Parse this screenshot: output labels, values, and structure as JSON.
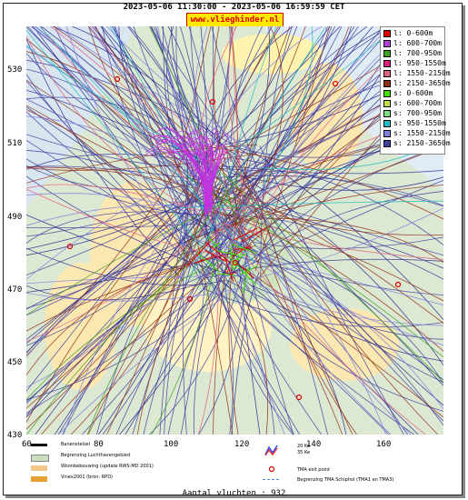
{
  "header": {
    "title": "2023-05-06 11:30:00 - 2023-05-06 16:59:59 CET",
    "site": "www.vlieghinder.nl"
  },
  "axes": {
    "y_ticks": [
      "530",
      "510",
      "490",
      "470",
      "450",
      "430"
    ],
    "x_ticks": [
      "60",
      "80",
      "100",
      "120",
      "140",
      "160"
    ]
  },
  "legend": [
    {
      "label": "l: 0-600m",
      "color": "#e00000"
    },
    {
      "label": "l: 600-700m",
      "color": "#b040e0"
    },
    {
      "label": "l: 700-950m",
      "color": "#40a020"
    },
    {
      "label": "l: 950-1550m",
      "color": "#e02080"
    },
    {
      "label": "l: 1550-2150m",
      "color": "#e06080"
    },
    {
      "label": "l: 2150-3650m",
      "color": "#903018"
    },
    {
      "label": "s: 0-600m",
      "color": "#40e000"
    },
    {
      "label": "s: 600-700m",
      "color": "#c0e040"
    },
    {
      "label": "s: 700-950m",
      "color": "#80e080"
    },
    {
      "label": "s: 950-1550m",
      "color": "#20c0c0"
    },
    {
      "label": "s: 1550-2150m",
      "color": "#8080e0"
    },
    {
      "label": "s: 2150-3650m",
      "color": "#4040a0"
    }
  ],
  "key": {
    "runway": "Banenstelsel",
    "airport_boundary": "Begrenzing Luchthavengebied",
    "residential": "Woonbebouwing (update RWS-MD 2001)",
    "vinex": "Vinex2001 (bron: RPD)",
    "noise_20": "20 Ke",
    "noise_35": "35 Ke",
    "tma_exit": "TMA exit point",
    "tma_boundary": "Begrenzing TMA Schiphol  (TMA1 en TMA3)"
  },
  "footer": {
    "flights": "Aantal vluchten : 932"
  },
  "colors": {
    "badge_bg": "#ffe800",
    "badge_text": "#dd0000",
    "map_bg": "#e8f0dc"
  }
}
